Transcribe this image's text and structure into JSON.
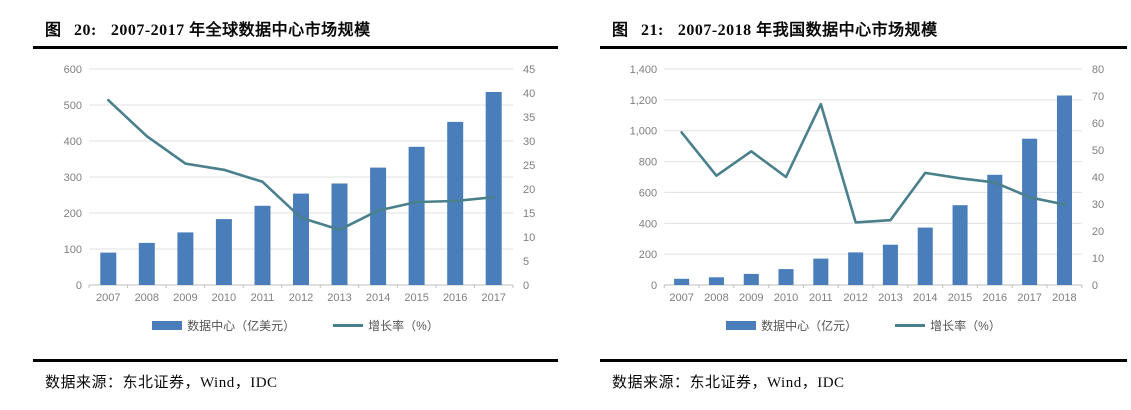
{
  "colors": {
    "bar": "#4A7EBB",
    "line": "#4A808C",
    "grid": "#E0E0E0",
    "axis_line": "#BFBFBF",
    "axis_text": "#7F7F7F",
    "rule": "#000000"
  },
  "chart_data": [
    {
      "type": "bar",
      "subtype": "bar+line dual-axis combo",
      "figure_label": "图 20:",
      "title": "2007-2017 年全球数据中心市场规模",
      "categories": [
        "2007",
        "2008",
        "2009",
        "2010",
        "2011",
        "2012",
        "2013",
        "2014",
        "2015",
        "2016",
        "2017"
      ],
      "series": [
        {
          "name": "数据中心（亿美元）",
          "type": "bar",
          "axis": "left",
          "values": [
            90,
            117,
            146,
            183,
            220,
            254,
            282,
            326,
            384,
            453,
            536
          ]
        },
        {
          "name": "增长率（%）",
          "type": "line",
          "axis": "right",
          "values": [
            38.5,
            31,
            25.3,
            24,
            21.5,
            14,
            11.5,
            15.5,
            17.3,
            17.5,
            18.3
          ]
        }
      ],
      "left_axis": {
        "min": 0,
        "max": 600,
        "step": 100
      },
      "right_axis": {
        "min": 0,
        "max": 45,
        "step": 5
      },
      "grid": "horizontal",
      "legend_position": "bottom",
      "source": "数据来源：东北证券，Wind，IDC"
    },
    {
      "type": "bar",
      "subtype": "bar+line dual-axis combo",
      "figure_label": "图 21:",
      "title": "2007-2018 年我国数据中心市场规模",
      "categories": [
        "2007",
        "2008",
        "2009",
        "2010",
        "2011",
        "2012",
        "2013",
        "2014",
        "2015",
        "2016",
        "2017",
        "2018"
      ],
      "series": [
        {
          "name": "数据中心（亿元）",
          "type": "bar",
          "axis": "left",
          "values": [
            40,
            50,
            72,
            103,
            171,
            211,
            261,
            372,
            517,
            714,
            948,
            1228
          ]
        },
        {
          "name": "增长率（%）",
          "type": "line",
          "axis": "right",
          "values": [
            56.5,
            40.5,
            49.5,
            40,
            67,
            23.2,
            24,
            41.5,
            39.5,
            38,
            32.5,
            29.8
          ]
        }
      ],
      "left_axis": {
        "min": 0,
        "max": 1400,
        "step": 200
      },
      "right_axis": {
        "min": 0,
        "max": 80,
        "step": 10
      },
      "grid": "horizontal",
      "legend_position": "bottom",
      "source": "数据来源：东北证券，Wind，IDC"
    }
  ]
}
